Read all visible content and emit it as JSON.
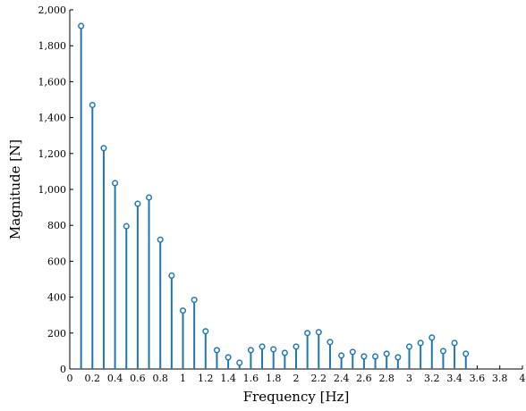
{
  "chart_data": {
    "type": "stem",
    "xlabel": "Frequency [Hz]",
    "ylabel": "Magnitude [N]",
    "xlim": [
      0,
      4
    ],
    "ylim": [
      0,
      2000
    ],
    "x_ticks": [
      0,
      0.2,
      0.4,
      0.6,
      0.8,
      1,
      1.2,
      1.4,
      1.6,
      1.8,
      2,
      2.2,
      2.4,
      2.6,
      2.8,
      3,
      3.2,
      3.4,
      3.6,
      3.8,
      4
    ],
    "x_tick_labels": [
      "0",
      "0.2",
      "0.4",
      "0.6",
      "0.8",
      "1",
      "1.2",
      "1.4",
      "1.6",
      "1.8",
      "2",
      "2.2",
      "2.4",
      "2.6",
      "2.8",
      "3",
      "3.2",
      "3.4",
      "3.6",
      "3.8",
      "4"
    ],
    "y_ticks": [
      0,
      200,
      400,
      600,
      800,
      1000,
      1200,
      1400,
      1600,
      1800,
      2000
    ],
    "y_tick_labels": [
      "0",
      "200",
      "400",
      "600",
      "800",
      "1,000",
      "1,200",
      "1,400",
      "1,600",
      "1,800",
      "2,000"
    ],
    "color": "#1f77b4",
    "grid": false,
    "series": [
      {
        "x": [
          0.1,
          0.2,
          0.3,
          0.4,
          0.5,
          0.6,
          0.7,
          0.8,
          0.9,
          1.0,
          1.1,
          1.2,
          1.3,
          1.4,
          1.5,
          1.6,
          1.7,
          1.8,
          1.9,
          2.0,
          2.1,
          2.2,
          2.3,
          2.4,
          2.5,
          2.6,
          2.7,
          2.8,
          2.9,
          3.0,
          3.1,
          3.2,
          3.3,
          3.4,
          3.5
        ],
        "values": [
          1910,
          1470,
          1230,
          1035,
          795,
          920,
          955,
          720,
          520,
          325,
          385,
          210,
          105,
          65,
          35,
          105,
          125,
          110,
          90,
          125,
          200,
          205,
          150,
          75,
          95,
          70,
          70,
          85,
          65,
          125,
          145,
          175,
          100,
          145,
          85
        ]
      }
    ]
  }
}
